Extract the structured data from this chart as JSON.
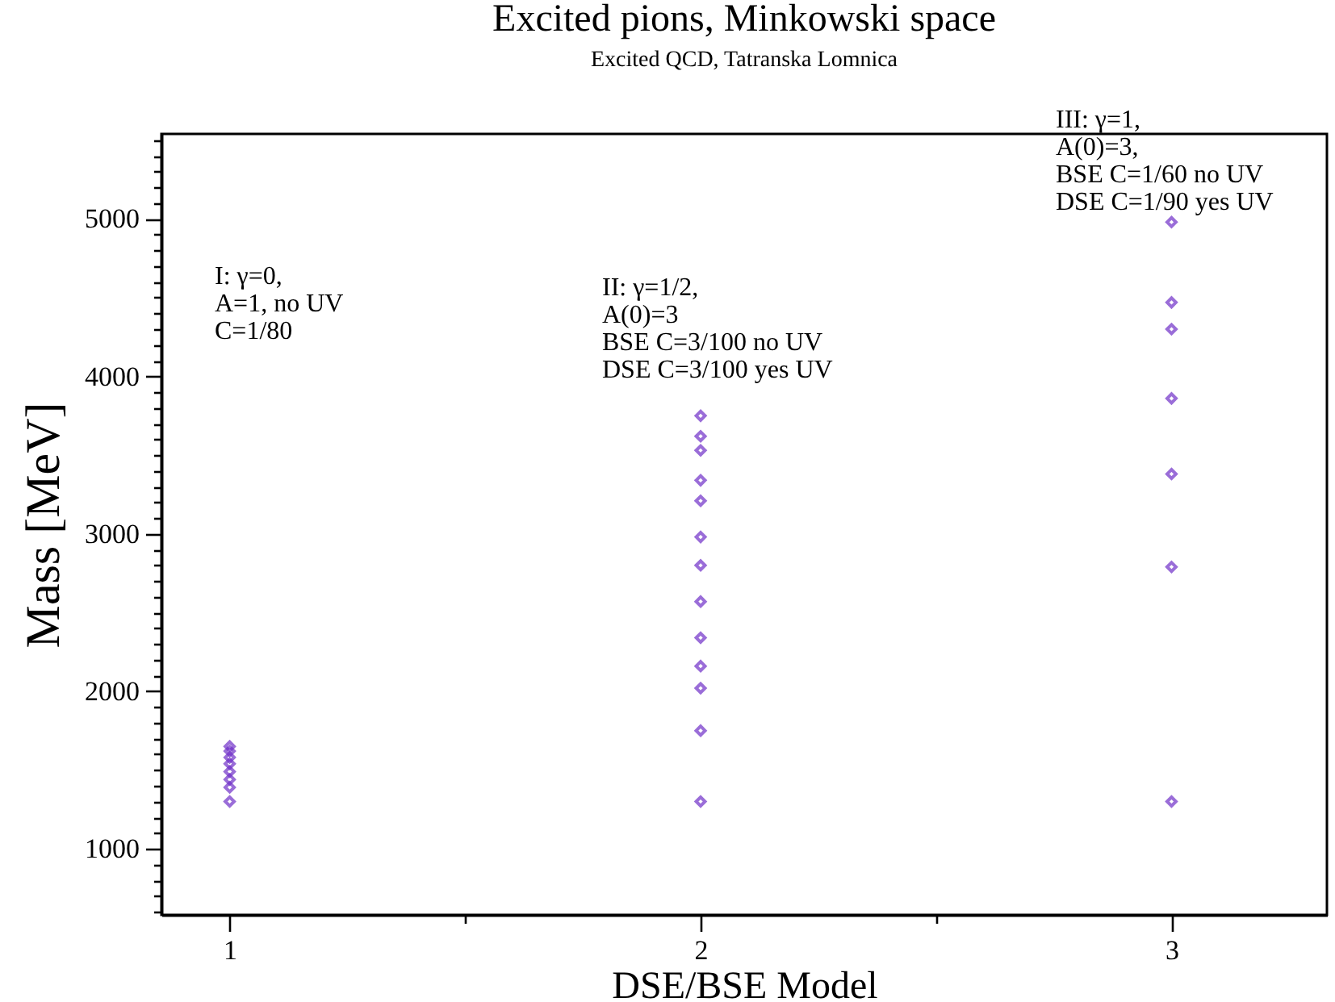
{
  "chart_data": {
    "type": "scatter",
    "title": "Excited pions, Minkowski space",
    "subtitle": "Excited QCD, Tatranska Lomnica",
    "xlabel": "DSE/BSE Model",
    "ylabel": "Mass [MeV]",
    "x": [
      1,
      1,
      1,
      1,
      1,
      1,
      1,
      1,
      2,
      2,
      2,
      2,
      2,
      2,
      2,
      2,
      2,
      2,
      2,
      2,
      2,
      3,
      3,
      3,
      3,
      3,
      3,
      3
    ],
    "series": [
      {
        "color": "#7030c8",
        "values": [
          1300,
          1390,
          1440,
          1490,
          1540,
          1580,
          1620,
          1650,
          3750,
          3620,
          3530,
          3340,
          3210,
          2980,
          2800,
          2570,
          2340,
          2160,
          2020,
          1750,
          1300,
          4980,
          4470,
          4300,
          3860,
          3380,
          2790,
          1300
        ]
      }
    ],
    "xlim": [
      0.855,
      3.33
    ],
    "xticks": [
      1,
      {
        "value": 1.5,
        "label": null
      },
      2,
      {
        "value": 2.5,
        "label": null
      },
      3
    ],
    "ylim": [
      580,
      5540
    ],
    "yticks": [
      {
        "value": 600,
        "label": null
      },
      {
        "value": 700,
        "label": null
      },
      {
        "value": 800,
        "label": null
      },
      {
        "value": 900,
        "label": null
      },
      1000,
      {
        "value": 1100,
        "label": null
      },
      {
        "value": 1200,
        "label": null
      },
      {
        "value": 1300,
        "label": null
      },
      {
        "value": 1400,
        "label": null
      },
      {
        "value": 1500,
        "label": null
      },
      {
        "value": 1600,
        "label": null
      },
      {
        "value": 1700,
        "label": null
      },
      {
        "value": 1800,
        "label": null
      },
      {
        "value": 1900,
        "label": null
      },
      2000,
      {
        "value": 2100,
        "label": null
      },
      {
        "value": 2200,
        "label": null
      },
      {
        "value": 2300,
        "label": null
      },
      {
        "value": 2400,
        "label": null
      },
      {
        "value": 2500,
        "label": null
      },
      {
        "value": 2600,
        "label": null
      },
      {
        "value": 2700,
        "label": null
      },
      {
        "value": 2800,
        "label": null
      },
      {
        "value": 2900,
        "label": null
      },
      3000,
      {
        "value": 3100,
        "label": null
      },
      {
        "value": 3200,
        "label": null
      },
      {
        "value": 3300,
        "label": null
      },
      {
        "value": 3400,
        "label": null
      },
      {
        "value": 3500,
        "label": null
      },
      {
        "value": 3600,
        "label": null
      },
      {
        "value": 3700,
        "label": null
      },
      {
        "value": 3800,
        "label": null
      },
      {
        "value": 3900,
        "label": null
      },
      4000,
      {
        "value": 4100,
        "label": null
      },
      {
        "value": 4200,
        "label": null
      },
      {
        "value": 4300,
        "label": null
      },
      {
        "value": 4400,
        "label": null
      },
      {
        "value": 4500,
        "label": null
      },
      {
        "value": 4600,
        "label": null
      },
      {
        "value": 4700,
        "label": null
      },
      {
        "value": 4800,
        "label": null
      },
      {
        "value": 4900,
        "label": null
      },
      5000,
      {
        "value": 5100,
        "label": null
      },
      {
        "value": 5200,
        "label": null
      },
      {
        "value": 5300,
        "label": null
      },
      {
        "value": 5400,
        "label": null
      },
      {
        "value": 5500,
        "label": null
      }
    ],
    "grid": false,
    "legend": false,
    "marker": "diamond",
    "annotations": [
      "I:  γ=0,\n A=1,  no UV\n C=1/80",
      "II:  γ=1/2,\n A(0)=3\n BSE  C=3/100 no UV\n DSE  C=3/100 yes UV",
      "III:  γ=1,\n A(0)=3,\n BSE C=1/60 no UV\n DSE C=1/90 yes UV"
    ]
  }
}
